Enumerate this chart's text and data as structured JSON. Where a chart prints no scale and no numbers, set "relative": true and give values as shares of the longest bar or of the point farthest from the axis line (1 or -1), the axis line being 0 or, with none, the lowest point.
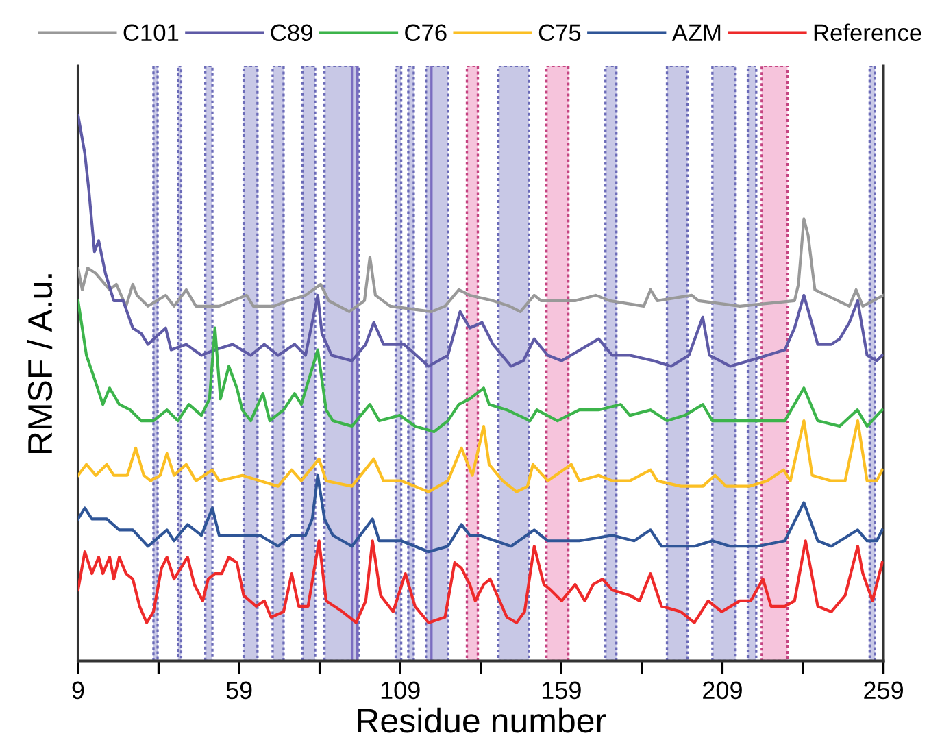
{
  "chart_data": {
    "type": "line",
    "relative": true,
    "xlabel": "Residue number",
    "ylabel": "RMSF / A.u.",
    "xlim": [
      9,
      259
    ],
    "xticks": [
      9,
      {
        "value": 34,
        "label": null
      },
      59,
      {
        "value": 84,
        "label": null
      },
      109,
      {
        "value": 134,
        "label": null
      },
      159,
      {
        "value": 184,
        "label": null
      },
      209,
      {
        "value": 234,
        "label": null
      },
      259
    ],
    "tick_labels": "x",
    "grid": false,
    "legend": "top",
    "marker": "none",
    "line_style": "solid",
    "series": [
      {
        "name": "C101",
        "color": "#999999",
        "x": [
          9,
          10.3,
          12,
          14.5,
          18.8,
          20.9,
          23.9,
          26,
          27.3,
          30.7,
          36.2,
          38.8,
          42.6,
          45.6,
          52.8,
          57,
          61.3,
          63.4,
          69.8,
          74,
          79.6,
          84.3,
          86.8,
          93.2,
          97.9,
          99.6,
          101.3,
          105.9,
          118.7,
          122.9,
          127.2,
          130.6,
          137.8,
          142.9,
          146.3,
          150.6,
          152.7,
          163.3,
          169.7,
          174,
          184.6,
          186.7,
          188.8,
          199.5,
          201.6,
          214.4,
          231.4,
          232.6,
          234.3,
          235.6,
          237.7,
          248.4,
          250.5,
          252.6,
          259
        ],
        "values": [
          0.72,
          0.68,
          0.72,
          0.71,
          0.68,
          0.69,
          0.65,
          0.69,
          0.67,
          0.65,
          0.67,
          0.65,
          0.68,
          0.65,
          0.65,
          0.66,
          0.67,
          0.65,
          0.65,
          0.66,
          0.67,
          0.69,
          0.66,
          0.64,
          0.66,
          0.74,
          0.67,
          0.65,
          0.64,
          0.65,
          0.68,
          0.67,
          0.66,
          0.65,
          0.64,
          0.67,
          0.66,
          0.66,
          0.67,
          0.66,
          0.65,
          0.68,
          0.66,
          0.67,
          0.66,
          0.65,
          0.66,
          0.69,
          0.81,
          0.78,
          0.68,
          0.65,
          0.68,
          0.65,
          0.67
        ]
      },
      {
        "name": "C89",
        "color": "#5e5aa6",
        "x": [
          9,
          11.1,
          12.4,
          14.1,
          15.4,
          17.5,
          20.1,
          23,
          26,
          28.6,
          30.7,
          36.2,
          37.9,
          42.6,
          47.3,
          51.5,
          57,
          62.6,
          66.8,
          71.1,
          76.2,
          79.6,
          83.4,
          84.7,
          87.7,
          94,
          98.3,
          100.8,
          103.8,
          110.2,
          117.8,
          123.8,
          127.6,
          130.6,
          134.4,
          137.8,
          143.4,
          147.2,
          150.6,
          154.8,
          159.1,
          170.6,
          174.8,
          180.3,
          187.6,
          193.1,
          198.6,
          202.9,
          205,
          211.4,
          217.3,
          222.9,
          228.4,
          231.4,
          234.3,
          238.6,
          242.8,
          245.4,
          248.4,
          251,
          253.9,
          256.9,
          258.6
        ],
        "values": [
          1.0,
          0.93,
          0.86,
          0.75,
          0.77,
          0.71,
          0.66,
          0.66,
          0.61,
          0.6,
          0.58,
          0.61,
          0.57,
          0.58,
          0.56,
          0.57,
          0.58,
          0.56,
          0.58,
          0.56,
          0.58,
          0.56,
          0.67,
          0.6,
          0.56,
          0.55,
          0.58,
          0.62,
          0.58,
          0.58,
          0.54,
          0.56,
          0.64,
          0.61,
          0.62,
          0.58,
          0.54,
          0.55,
          0.59,
          0.56,
          0.55,
          0.59,
          0.56,
          0.56,
          0.55,
          0.54,
          0.56,
          0.63,
          0.56,
          0.54,
          0.55,
          0.56,
          0.57,
          0.61,
          0.67,
          0.58,
          0.58,
          0.59,
          0.62,
          0.66,
          0.56,
          0.55,
          0.56
        ]
      },
      {
        "name": "C76",
        "color": "#3cb44b",
        "x": [
          9,
          11.6,
          14.5,
          16.7,
          18.8,
          21.8,
          25.2,
          28.6,
          32.4,
          36.6,
          40,
          43.4,
          47.3,
          49.8,
          51.5,
          53.2,
          55.8,
          58.3,
          60,
          62.6,
          66.4,
          68.5,
          72.8,
          76.2,
          78.3,
          83.4,
          86,
          88.1,
          94,
          99.6,
          102.5,
          108.9,
          113.6,
          119.5,
          123.8,
          127.2,
          130.6,
          134.9,
          136.6,
          142.1,
          149.3,
          151.4,
          157.8,
          164.6,
          170.6,
          177.4,
          180.3,
          186.7,
          191.8,
          197.4,
          202.9,
          205.9,
          221.6,
          228.4,
          234.3,
          238.6,
          245.4,
          250.9,
          253.9,
          258.6
        ],
        "values": [
          0.66,
          0.56,
          0.51,
          0.47,
          0.5,
          0.47,
          0.46,
          0.44,
          0.44,
          0.46,
          0.44,
          0.47,
          0.45,
          0.48,
          0.61,
          0.48,
          0.54,
          0.5,
          0.46,
          0.44,
          0.49,
          0.44,
          0.46,
          0.49,
          0.47,
          0.57,
          0.46,
          0.44,
          0.43,
          0.47,
          0.44,
          0.45,
          0.43,
          0.42,
          0.44,
          0.47,
          0.48,
          0.5,
          0.47,
          0.46,
          0.44,
          0.46,
          0.44,
          0.46,
          0.46,
          0.47,
          0.45,
          0.46,
          0.44,
          0.45,
          0.47,
          0.44,
          0.44,
          0.44,
          0.5,
          0.44,
          0.43,
          0.46,
          0.43,
          0.46
        ]
      },
      {
        "name": "C75",
        "color": "#fbbf24",
        "x": [
          9,
          11.6,
          14.5,
          17.9,
          20.1,
          24.3,
          26.9,
          29.4,
          31.5,
          34.5,
          36.6,
          38.8,
          42.6,
          45.6,
          50.7,
          52.8,
          60,
          65.5,
          71.1,
          75.3,
          78.3,
          83.8,
          86,
          94,
          100.8,
          103.8,
          109.3,
          117.8,
          123.8,
          128,
          131.4,
          134.9,
          136.6,
          140.8,
          145.1,
          148.5,
          150.2,
          154.8,
          162.1,
          164.6,
          170.6,
          174.8,
          180.3,
          186.7,
          188.8,
          196.1,
          202.9,
          206.7,
          210.1,
          217.3,
          222.9,
          228,
          230.1,
          234.3,
          236.9,
          242.8,
          247.1,
          251,
          253.9,
          256.9,
          258.6
        ],
        "values": [
          0.34,
          0.36,
          0.34,
          0.36,
          0.34,
          0.34,
          0.39,
          0.34,
          0.33,
          0.34,
          0.38,
          0.34,
          0.36,
          0.33,
          0.35,
          0.33,
          0.34,
          0.33,
          0.32,
          0.35,
          0.33,
          0.37,
          0.33,
          0.32,
          0.37,
          0.33,
          0.33,
          0.31,
          0.33,
          0.39,
          0.34,
          0.43,
          0.36,
          0.33,
          0.31,
          0.32,
          0.36,
          0.33,
          0.36,
          0.33,
          0.34,
          0.33,
          0.33,
          0.35,
          0.33,
          0.32,
          0.32,
          0.34,
          0.32,
          0.32,
          0.33,
          0.35,
          0.33,
          0.44,
          0.34,
          0.33,
          0.33,
          0.44,
          0.33,
          0.33,
          0.35
        ]
      },
      {
        "name": "AZM",
        "color": "#2f5597",
        "x": [
          9,
          11.1,
          13.3,
          15.8,
          17.9,
          21.8,
          26,
          30.7,
          36.6,
          38.8,
          43,
          47.3,
          50.7,
          52.8,
          60,
          65.5,
          71.1,
          75.3,
          79.6,
          81.7,
          83.4,
          85.5,
          88.1,
          94,
          100.4,
          102.5,
          109.3,
          117.8,
          123.8,
          128,
          130.6,
          133.6,
          143.4,
          150.6,
          154.8,
          164.6,
          174.8,
          181.6,
          186.7,
          190.1,
          200.3,
          205.9,
          211.4,
          219.9,
          228.4,
          234.3,
          238.6,
          242.8,
          251,
          253.9,
          256.9,
          258.6
        ],
        "values": [
          0.26,
          0.28,
          0.26,
          0.26,
          0.26,
          0.24,
          0.24,
          0.21,
          0.24,
          0.22,
          0.25,
          0.23,
          0.28,
          0.23,
          0.23,
          0.23,
          0.21,
          0.23,
          0.23,
          0.26,
          0.34,
          0.26,
          0.23,
          0.21,
          0.26,
          0.22,
          0.22,
          0.2,
          0.21,
          0.25,
          0.23,
          0.23,
          0.21,
          0.24,
          0.22,
          0.22,
          0.23,
          0.22,
          0.24,
          0.21,
          0.21,
          0.22,
          0.21,
          0.21,
          0.22,
          0.29,
          0.22,
          0.21,
          0.24,
          0.22,
          0.22,
          0.24
        ]
      },
      {
        "name": "Reference",
        "color": "#ee2a2a",
        "x": [
          9,
          11.1,
          13.3,
          15.4,
          16.7,
          18.8,
          20.1,
          21.8,
          23.9,
          26,
          28.1,
          30.3,
          32.4,
          34.9,
          36.6,
          38.8,
          40.9,
          43,
          45.1,
          47.7,
          49.4,
          51.5,
          53.6,
          55.8,
          58.3,
          60.4,
          64.3,
          66.8,
          68.9,
          72.8,
          75.3,
          77.5,
          80.4,
          83.8,
          86,
          91.1,
          95.3,
          98.3,
          100.4,
          102.9,
          106.8,
          110.6,
          113.6,
          117.8,
          122.9,
          125.9,
          128,
          130.6,
          132.3,
          134.9,
          136.9,
          142.1,
          145.1,
          147.6,
          150.6,
          153.6,
          155.7,
          159.1,
          163.3,
          166.3,
          168.9,
          171.8,
          174.8,
          180.3,
          183.3,
          186.7,
          190.1,
          196.1,
          200.3,
          204.6,
          208.8,
          214.4,
          217.8,
          221.6,
          224.1,
          228.4,
          231.4,
          234.8,
          238.6,
          242.8,
          247.1,
          251,
          252.6,
          255.6,
          258.6
        ],
        "values": [
          0.13,
          0.2,
          0.16,
          0.19,
          0.16,
          0.19,
          0.15,
          0.19,
          0.16,
          0.15,
          0.1,
          0.07,
          0.09,
          0.17,
          0.19,
          0.15,
          0.17,
          0.19,
          0.14,
          0.11,
          0.15,
          0.16,
          0.16,
          0.19,
          0.18,
          0.12,
          0.1,
          0.11,
          0.08,
          0.09,
          0.16,
          0.1,
          0.1,
          0.22,
          0.11,
          0.09,
          0.07,
          0.11,
          0.22,
          0.12,
          0.09,
          0.16,
          0.1,
          0.07,
          0.08,
          0.18,
          0.17,
          0.14,
          0.11,
          0.14,
          0.15,
          0.08,
          0.07,
          0.09,
          0.21,
          0.14,
          0.13,
          0.11,
          0.14,
          0.11,
          0.14,
          0.15,
          0.13,
          0.12,
          0.11,
          0.16,
          0.1,
          0.09,
          0.07,
          0.11,
          0.09,
          0.11,
          0.11,
          0.15,
          0.1,
          0.1,
          0.11,
          0.22,
          0.1,
          0.09,
          0.12,
          0.21,
          0.16,
          0.11,
          0.18
        ]
      }
    ],
    "bands": [
      {
        "axis": "x",
        "from": 32.4,
        "to": 33.7,
        "color": "#c8c8e6"
      },
      {
        "axis": "x",
        "from": 40,
        "to": 41,
        "color": "#c8c8e6"
      },
      {
        "axis": "x",
        "from": 48.5,
        "to": 50.7,
        "color": "#c8c8e6"
      },
      {
        "axis": "x",
        "from": 60.4,
        "to": 64.7,
        "color": "#c8c8e6"
      },
      {
        "axis": "x",
        "from": 69.4,
        "to": 72.8,
        "color": "#c8c8e6"
      },
      {
        "axis": "x",
        "from": 78.7,
        "to": 82.6,
        "color": "#c8c8e6"
      },
      {
        "axis": "x",
        "from": 85.5,
        "to": 96.2,
        "color": "#c8c8e6"
      },
      {
        "axis": "x",
        "from": 107.6,
        "to": 109.3,
        "color": "#c8c8e6"
      },
      {
        "axis": "x",
        "from": 111.5,
        "to": 113.2,
        "color": "#c8c8e6"
      },
      {
        "axis": "x",
        "from": 117,
        "to": 123.8,
        "color": "#c8c8e6"
      },
      {
        "axis": "x",
        "from": 129.7,
        "to": 133.1,
        "color": "#f6c4dc"
      },
      {
        "axis": "x",
        "from": 139.5,
        "to": 148.9,
        "color": "#c8c8e6"
      },
      {
        "axis": "x",
        "from": 154.4,
        "to": 161.2,
        "color": "#f6c4dc"
      },
      {
        "axis": "x",
        "from": 172.7,
        "to": 176.1,
        "color": "#c8c8e6"
      },
      {
        "axis": "x",
        "from": 191.8,
        "to": 198.2,
        "color": "#c8c8e6"
      },
      {
        "axis": "x",
        "from": 205.9,
        "to": 213.1,
        "color": "#c8c8e6"
      },
      {
        "axis": "x",
        "from": 216.9,
        "to": 219.5,
        "color": "#c8c8e6"
      },
      {
        "axis": "x",
        "from": 221.2,
        "to": 229.2,
        "color": "#f6c4dc"
      },
      {
        "axis": "x",
        "from": 254.7,
        "to": 256.4,
        "color": "#c8c8e6"
      }
    ],
    "ref_lines": [
      {
        "axis": "x",
        "value": 94,
        "color": "#7a6cc0",
        "line_style": "solid"
      },
      {
        "axis": "x",
        "value": 95.7,
        "color": "#7a6cc0",
        "line_style": "solid"
      },
      {
        "axis": "x",
        "value": 118.7,
        "color": "#7a6cc0",
        "line_style": "solid"
      }
    ]
  }
}
